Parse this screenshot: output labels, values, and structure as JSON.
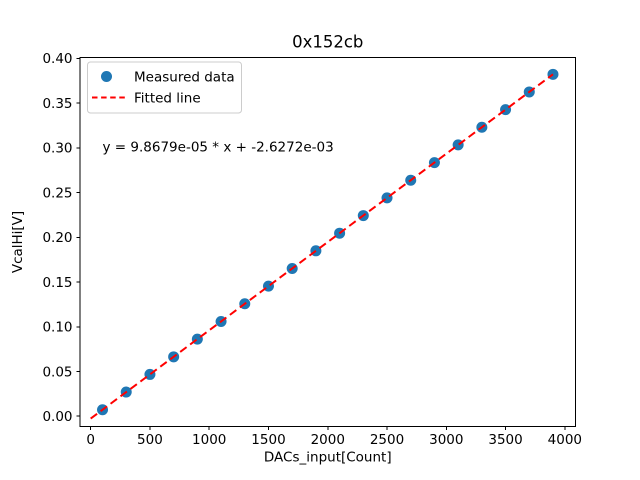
{
  "figure": {
    "background": "#ffffff"
  },
  "chart_data": {
    "type": "scatter",
    "title": "0x152cb",
    "xlabel": "DACs_input[Count]",
    "ylabel": "VcalHi[V]",
    "xlim": [
      -90,
      4090
    ],
    "ylim": [
      -0.0115,
      0.401
    ],
    "xticks": [
      0,
      500,
      1000,
      1500,
      2000,
      2500,
      3000,
      3500,
      4000
    ],
    "xtick_labels": [
      "0",
      "500",
      "1000",
      "1500",
      "2000",
      "2500",
      "3000",
      "3500",
      "4000"
    ],
    "yticks": [
      0.0,
      0.05,
      0.1,
      0.15,
      0.2,
      0.25,
      0.3,
      0.35,
      0.4
    ],
    "ytick_labels": [
      "0.00",
      "0.05",
      "0.10",
      "0.15",
      "0.20",
      "0.25",
      "0.30",
      "0.35",
      "0.40"
    ],
    "grid": false,
    "legend_position": "upper-left",
    "annotation": {
      "text": "y = 9.8679e-05 * x + -2.6272e-03",
      "x": 100,
      "y": 0.3
    },
    "fit": {
      "slope": 9.8679e-05,
      "intercept": -0.0026272,
      "x_start": 0,
      "x_end": 3900
    },
    "series": [
      {
        "name": "Measured data",
        "type": "scatter",
        "marker": "circle",
        "color": "#1f77b4",
        "x": [
          100,
          300,
          500,
          700,
          900,
          1100,
          1300,
          1500,
          1700,
          1900,
          2100,
          2300,
          2500,
          2700,
          2900,
          3100,
          3300,
          3500,
          3700,
          3900
        ],
        "y": [
          0.0072,
          0.027,
          0.0467,
          0.0664,
          0.0862,
          0.1059,
          0.1257,
          0.1454,
          0.1651,
          0.1849,
          0.2046,
          0.2243,
          0.2441,
          0.2638,
          0.2835,
          0.3033,
          0.323,
          0.3427,
          0.3625,
          0.3822
        ]
      },
      {
        "name": "Fitted line",
        "type": "line",
        "linestyle": "dashed",
        "color": "#ff0000"
      }
    ]
  }
}
